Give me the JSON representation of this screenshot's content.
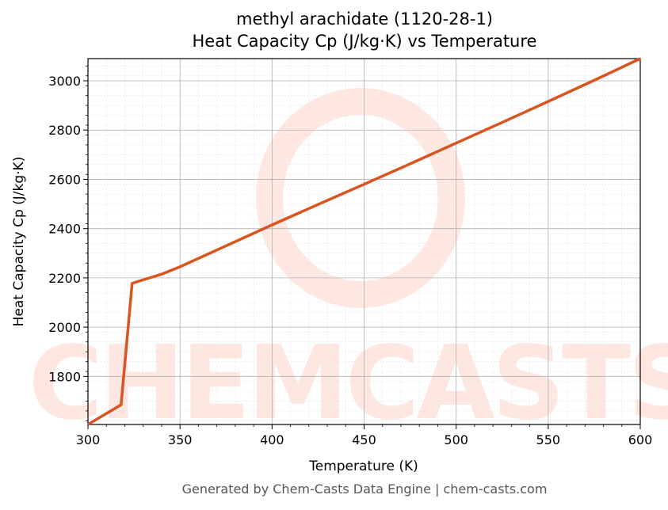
{
  "chart_data": {
    "type": "line",
    "title": "methyl arachidate (1120-28-1)",
    "subtitle": "Heat Capacity Cp (J/kg·K) vs Temperature",
    "xlabel": "Temperature (K)",
    "ylabel": "Heat Capacity Cp (J/kg·K)",
    "xlim": [
      300,
      600
    ],
    "ylim": [
      1605,
      3090
    ],
    "x_ticks": [
      300,
      350,
      400,
      450,
      500,
      550,
      600
    ],
    "y_ticks": [
      1800,
      2000,
      2200,
      2400,
      2600,
      2800,
      3000
    ],
    "grid": true,
    "legend": null,
    "series": [
      {
        "name": "Cp",
        "color": "#d9541e",
        "x": [
          300,
          318,
          324,
          330,
          340,
          350,
          375,
          400,
          425,
          450,
          475,
          500,
          525,
          550,
          575,
          600
        ],
        "y": [
          1605,
          1685,
          2178,
          2192,
          2215,
          2245,
          2330,
          2415,
          2498,
          2580,
          2663,
          2747,
          2831,
          2916,
          3002,
          3090
        ]
      }
    ]
  },
  "footer": "Generated by Chem-Casts Data Engine | chem-casts.com",
  "watermark": "CHEMCASTS"
}
